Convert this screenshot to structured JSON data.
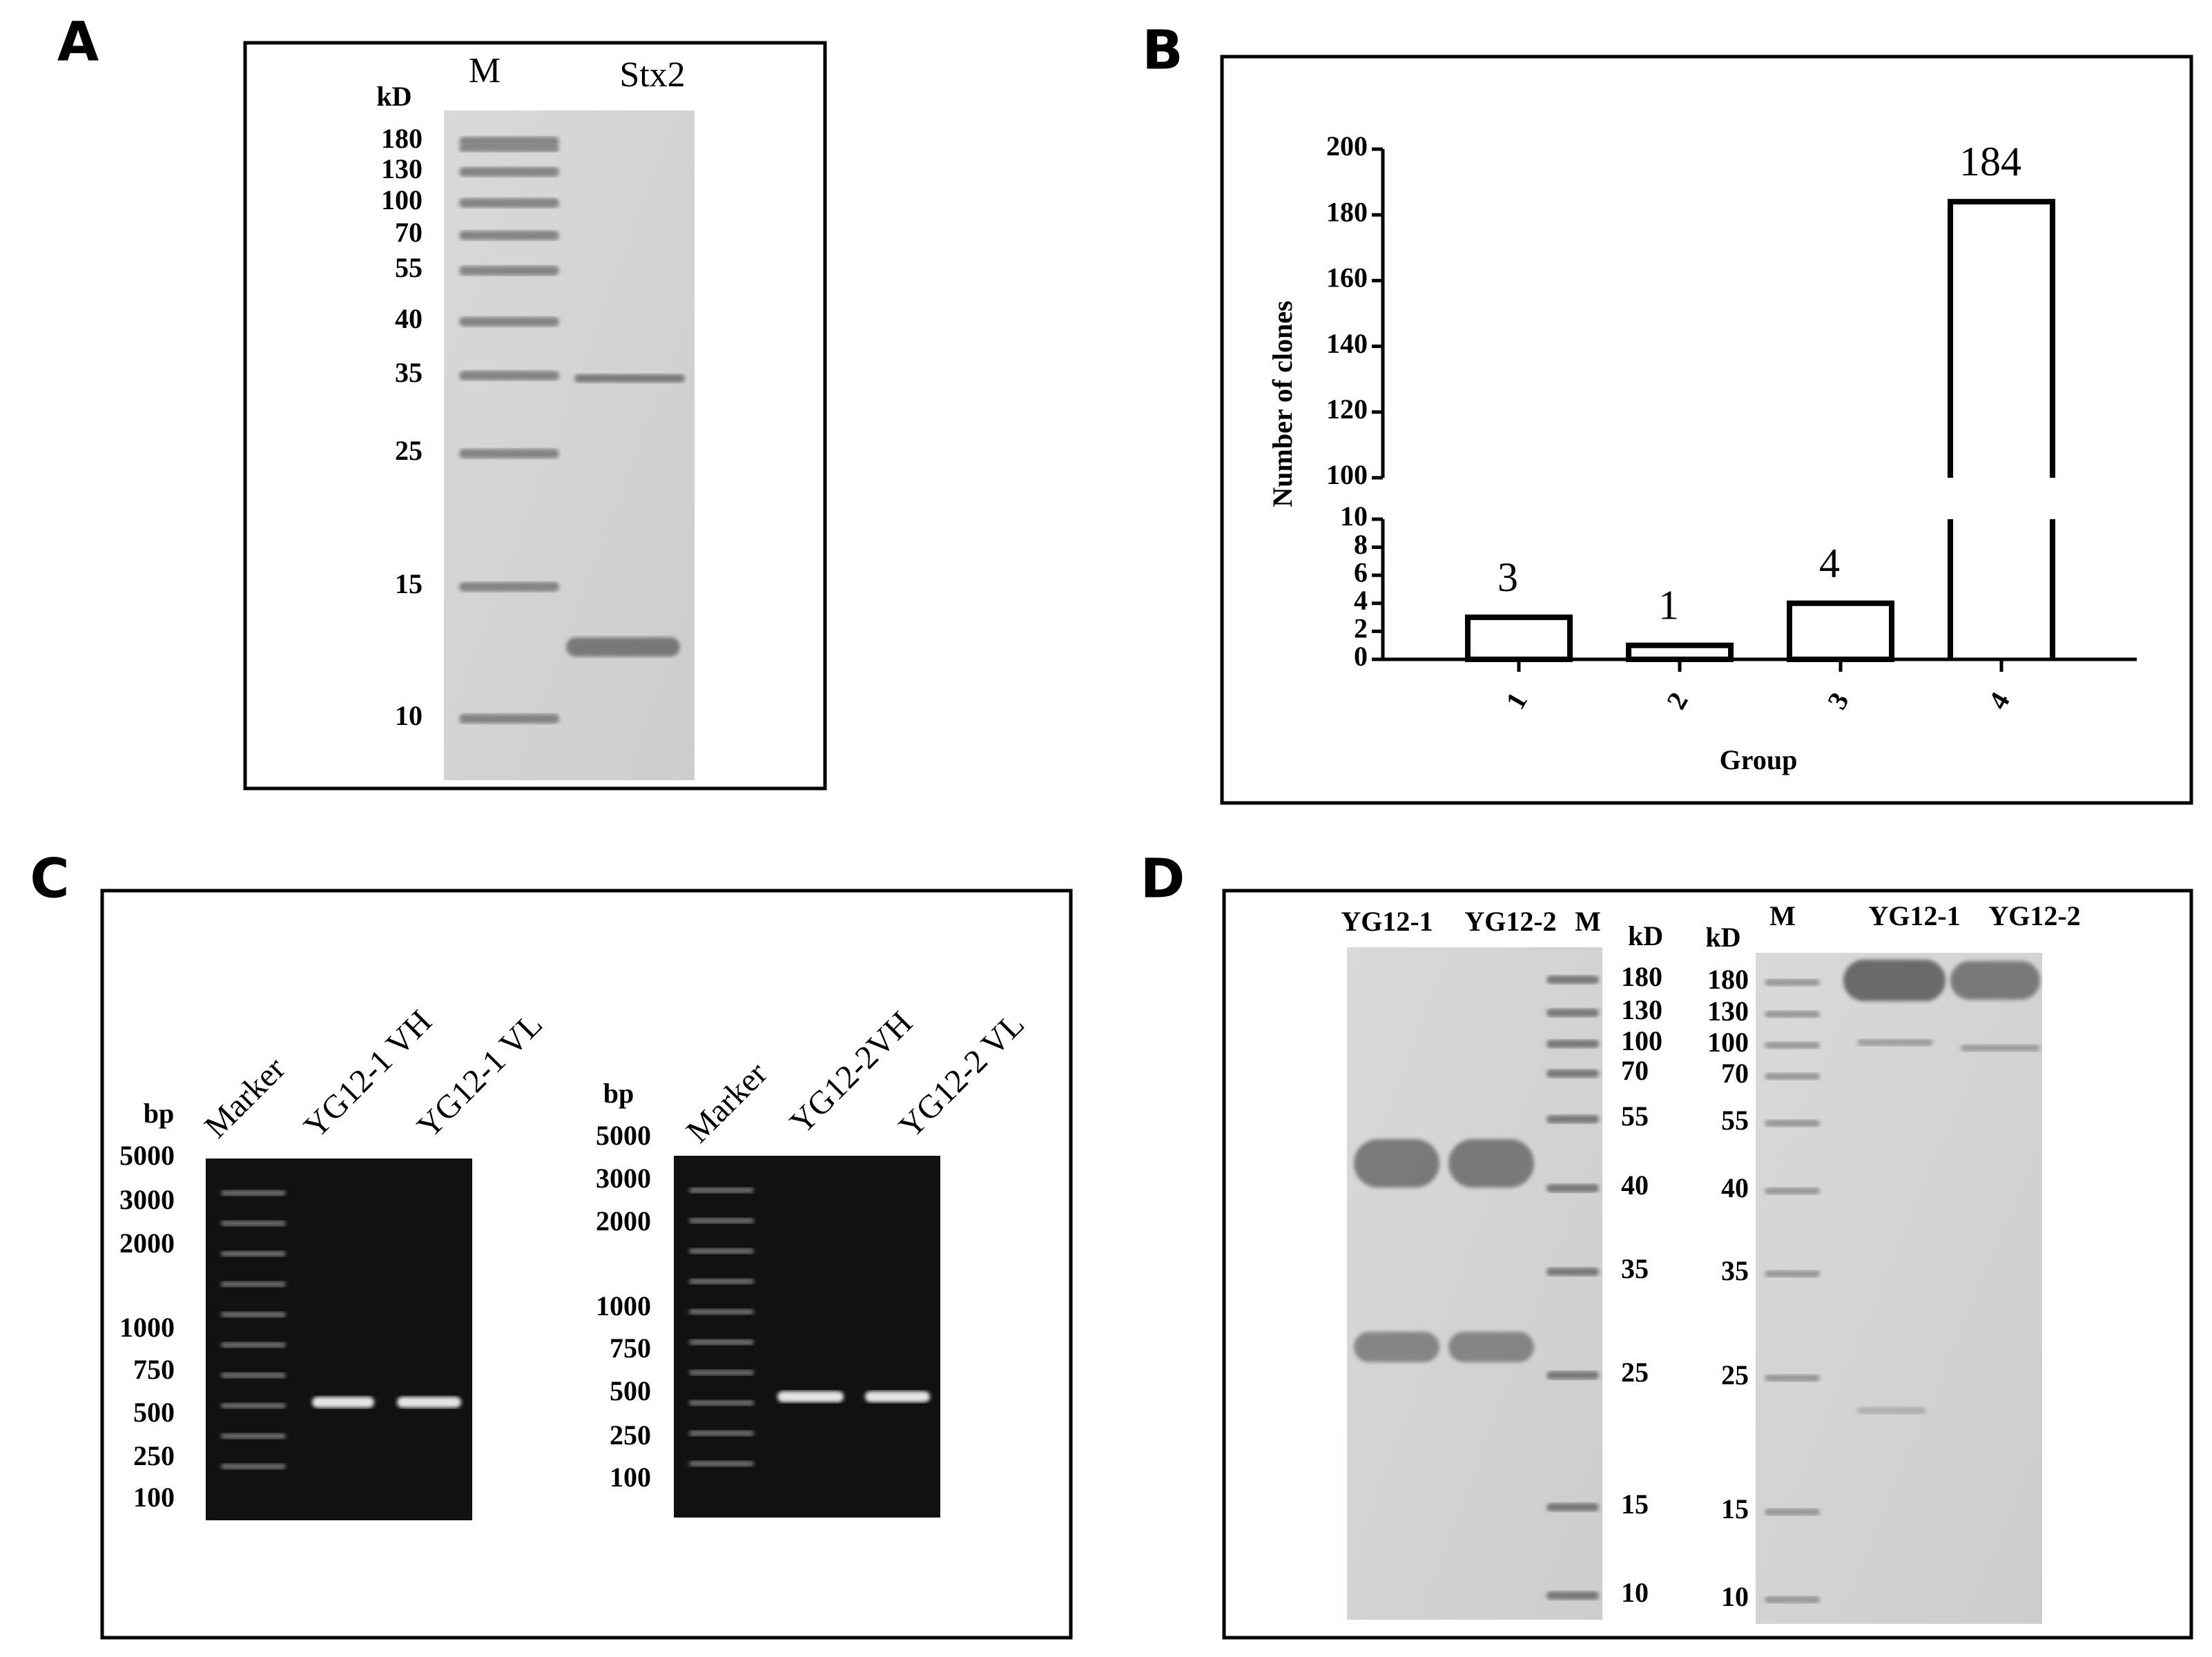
{
  "panels": {
    "a": "A",
    "b": "B",
    "c": "C",
    "d": "D"
  },
  "panel_a": {
    "unit": "kD",
    "lanes": [
      "M",
      "Stx2"
    ],
    "ladder": [
      "180",
      "130",
      "100",
      "70",
      "55",
      "40",
      "35",
      "25",
      "15",
      "10"
    ]
  },
  "panel_c": {
    "gel_1": {
      "unit": "bp",
      "lanes": [
        "Marker",
        "YG12-1 VH",
        "YG12-1 VL"
      ],
      "ladder": [
        "5000",
        "3000",
        "2000",
        "1000",
        "750",
        "500",
        "250",
        "100"
      ]
    },
    "gel_2": {
      "unit": "bp",
      "lanes": [
        "Marker",
        "YG12-2VH",
        "YG12-2 VL"
      ],
      "ladder": [
        "5000",
        "3000",
        "2000",
        "1000",
        "750",
        "500",
        "250",
        "100"
      ]
    }
  },
  "panel_d": {
    "gel_1": {
      "unit": "kD",
      "lanes": [
        "YG12-1",
        "YG12-2",
        "M"
      ],
      "ladder": [
        "180",
        "130",
        "100",
        "70",
        "55",
        "40",
        "35",
        "25",
        "15",
        "10"
      ]
    },
    "gel_2": {
      "unit": "kD",
      "lanes": [
        "M",
        "YG12-1",
        "YG12-2"
      ],
      "ladder": [
        "180",
        "130",
        "100",
        "70",
        "55",
        "40",
        "35",
        "25",
        "15",
        "10"
      ]
    }
  },
  "chart_data": {
    "type": "bar",
    "categories": [
      "1",
      "2",
      "3",
      "4"
    ],
    "values": [
      3,
      1,
      4,
      184
    ],
    "xlabel": "Group",
    "ylabel": "Number of clones",
    "ylim": [
      0,
      200
    ],
    "axis_break": [
      10,
      100
    ],
    "yticks": [
      0,
      2,
      4,
      6,
      8,
      10,
      100,
      120,
      140,
      160,
      180,
      200
    ],
    "bar_fill": "#ffffff",
    "bar_edge": "#000000"
  }
}
